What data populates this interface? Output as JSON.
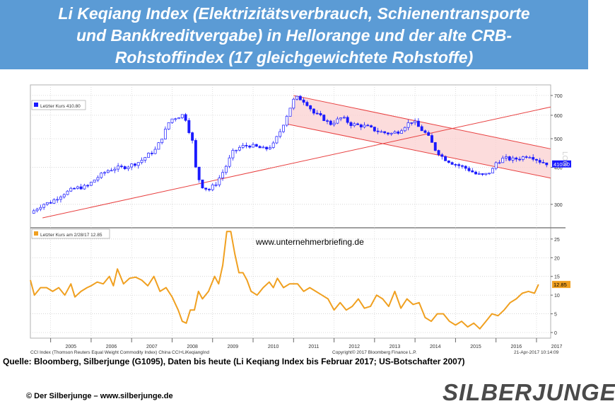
{
  "title": {
    "line1": "Li Keqiang Index (Elektrizitätsverbrauch, Schienentransporte",
    "line2": "und Bankkreditvergabe) in Hellorange und der alte CRB-",
    "line3": "Rohstoffindex (17 gleichgewichtete Rohstoffe)"
  },
  "watermark": "www.unternehmerbriefing.de",
  "source_note": "Quelle: Bloomberg, Silberjunge (G1095),  Daten  bis heute (Li Keqiang Index bis Februar 2017;  US-Botschafter  2007)",
  "copyright": "© Der Silberjunge – www.silberjunge.de",
  "brand": "SILBERJUNGE.",
  "footer": {
    "left": "CCI Index (Thomson Reuters Equal Weight Commodity Index) China CCI+LiKeqiangInd",
    "center": "Copyright© 2017 Bloomberg Finance L.P.",
    "right": "21-Apr-2017  10:14:09"
  },
  "colors": {
    "title_bg": "#5b9bd5",
    "candle_blue": "#1a1aff",
    "orange": "#f0a020",
    "trend_red": "#e84040",
    "channel_fill": "#fbd0d0"
  },
  "chart_data": [
    {
      "type": "candlestick",
      "legend": "Letzter Kurs 410.80",
      "last_value_tag": "410.80",
      "scale": "log",
      "y_ticks": [
        300,
        400,
        500,
        600,
        700
      ],
      "x_years": [
        "2005",
        "2006",
        "2007",
        "2008",
        "2009",
        "2010",
        "2011",
        "2012",
        "2013",
        "2014",
        "2015",
        "2016",
        "2017"
      ],
      "x_range": [
        2004.5,
        2017.35
      ],
      "y_range": [
        250,
        760
      ],
      "series_approx_close": [
        [
          2004.5,
          280
        ],
        [
          2004.8,
          300
        ],
        [
          2005.0,
          305
        ],
        [
          2005.3,
          325
        ],
        [
          2005.6,
          340
        ],
        [
          2005.9,
          345
        ],
        [
          2006.1,
          365
        ],
        [
          2006.4,
          390
        ],
        [
          2006.6,
          398
        ],
        [
          2006.8,
          400
        ],
        [
          2007.0,
          408
        ],
        [
          2007.2,
          418
        ],
        [
          2007.4,
          440
        ],
        [
          2007.6,
          460
        ],
        [
          2007.8,
          520
        ],
        [
          2007.95,
          580
        ],
        [
          2008.1,
          590
        ],
        [
          2008.3,
          605
        ],
        [
          2008.4,
          540
        ],
        [
          2008.5,
          490
        ],
        [
          2008.6,
          380
        ],
        [
          2008.75,
          345
        ],
        [
          2008.9,
          335
        ],
        [
          2009.1,
          355
        ],
        [
          2009.3,
          395
        ],
        [
          2009.5,
          450
        ],
        [
          2009.7,
          470
        ],
        [
          2009.9,
          475
        ],
        [
          2010.1,
          468
        ],
        [
          2010.3,
          460
        ],
        [
          2010.5,
          478
        ],
        [
          2010.7,
          540
        ],
        [
          2010.9,
          630
        ],
        [
          2011.0,
          675
        ],
        [
          2011.1,
          690
        ],
        [
          2011.3,
          665
        ],
        [
          2011.5,
          610
        ],
        [
          2011.7,
          590
        ],
        [
          2011.9,
          560
        ],
        [
          2012.0,
          570
        ],
        [
          2012.2,
          590
        ],
        [
          2012.4,
          560
        ],
        [
          2012.6,
          555
        ],
        [
          2012.8,
          550
        ],
        [
          2013.0,
          535
        ],
        [
          2013.2,
          525
        ],
        [
          2013.4,
          520
        ],
        [
          2013.6,
          530
        ],
        [
          2013.8,
          560
        ],
        [
          2013.95,
          575
        ],
        [
          2014.1,
          545
        ],
        [
          2014.3,
          515
        ],
        [
          2014.5,
          460
        ],
        [
          2014.7,
          430
        ],
        [
          2014.9,
          415
        ],
        [
          2015.1,
          405
        ],
        [
          2015.3,
          395
        ],
        [
          2015.5,
          380
        ],
        [
          2015.7,
          375
        ],
        [
          2015.9,
          390
        ],
        [
          2016.0,
          415
        ],
        [
          2016.2,
          430
        ],
        [
          2016.4,
          425
        ],
        [
          2016.6,
          430
        ],
        [
          2016.8,
          440
        ],
        [
          2016.95,
          430
        ],
        [
          2017.1,
          418
        ],
        [
          2017.3,
          410.8
        ]
      ],
      "trendline_start": [
        2004.8,
        270
      ],
      "trendline_end": [
        2017.35,
        640
      ],
      "channel_upper_start": [
        2011.0,
        700
      ],
      "channel_upper_end": [
        2017.35,
        462
      ],
      "channel_lower_start": [
        2010.85,
        560
      ],
      "channel_lower_end": [
        2017.35,
        368
      ]
    },
    {
      "type": "line",
      "legend": "Letzter Kurs am 2/28/17 12.85",
      "last_value_tag": "12.85",
      "y_ticks": [
        0,
        5,
        10,
        15,
        20,
        25
      ],
      "y_range": [
        -1.5,
        28
      ],
      "values": [
        [
          2004.5,
          14
        ],
        [
          2004.6,
          10
        ],
        [
          2004.75,
          12
        ],
        [
          2004.9,
          12
        ],
        [
          2005.05,
          11
        ],
        [
          2005.2,
          12
        ],
        [
          2005.35,
          10
        ],
        [
          2005.5,
          13
        ],
        [
          2005.6,
          9.5
        ],
        [
          2005.75,
          11
        ],
        [
          2005.9,
          12
        ],
        [
          2006.0,
          12.5
        ],
        [
          2006.15,
          13.5
        ],
        [
          2006.3,
          13
        ],
        [
          2006.45,
          15
        ],
        [
          2006.55,
          12.5
        ],
        [
          2006.65,
          17
        ],
        [
          2006.8,
          13
        ],
        [
          2006.95,
          14.5
        ],
        [
          2007.1,
          14.8
        ],
        [
          2007.25,
          14
        ],
        [
          2007.4,
          12.5
        ],
        [
          2007.55,
          15
        ],
        [
          2007.7,
          11
        ],
        [
          2007.85,
          12
        ],
        [
          2008.0,
          9.5
        ],
        [
          2008.15,
          6
        ],
        [
          2008.25,
          3
        ],
        [
          2008.35,
          2.5
        ],
        [
          2008.45,
          6
        ],
        [
          2008.55,
          6
        ],
        [
          2008.65,
          11
        ],
        [
          2008.75,
          9
        ],
        [
          2008.9,
          11
        ],
        [
          2009.05,
          15
        ],
        [
          2009.15,
          13
        ],
        [
          2009.25,
          18
        ],
        [
          2009.35,
          27
        ],
        [
          2009.45,
          27
        ],
        [
          2009.55,
          21
        ],
        [
          2009.65,
          16
        ],
        [
          2009.75,
          16
        ],
        [
          2009.85,
          14
        ],
        [
          2009.95,
          11
        ],
        [
          2010.1,
          10
        ],
        [
          2010.25,
          12
        ],
        [
          2010.4,
          13.5
        ],
        [
          2010.5,
          12
        ],
        [
          2010.6,
          14.5
        ],
        [
          2010.75,
          12
        ],
        [
          2010.9,
          13
        ],
        [
          2011.1,
          13
        ],
        [
          2011.25,
          11
        ],
        [
          2011.4,
          12
        ],
        [
          2011.55,
          11
        ],
        [
          2011.7,
          10
        ],
        [
          2011.85,
          9
        ],
        [
          2012.0,
          6
        ],
        [
          2012.15,
          8
        ],
        [
          2012.3,
          6
        ],
        [
          2012.45,
          7
        ],
        [
          2012.6,
          9
        ],
        [
          2012.75,
          6.5
        ],
        [
          2012.9,
          7
        ],
        [
          2013.05,
          10
        ],
        [
          2013.2,
          9
        ],
        [
          2013.35,
          7
        ],
        [
          2013.5,
          11
        ],
        [
          2013.65,
          6.5
        ],
        [
          2013.8,
          9
        ],
        [
          2013.95,
          7.5
        ],
        [
          2014.1,
          8
        ],
        [
          2014.25,
          4
        ],
        [
          2014.4,
          3
        ],
        [
          2014.55,
          5
        ],
        [
          2014.7,
          5
        ],
        [
          2014.85,
          3
        ],
        [
          2015.0,
          2
        ],
        [
          2015.15,
          3
        ],
        [
          2015.3,
          1.5
        ],
        [
          2015.45,
          2.5
        ],
        [
          2015.6,
          1
        ],
        [
          2015.75,
          3
        ],
        [
          2015.9,
          5
        ],
        [
          2016.05,
          4.5
        ],
        [
          2016.2,
          6
        ],
        [
          2016.35,
          8
        ],
        [
          2016.5,
          9
        ],
        [
          2016.65,
          10.5
        ],
        [
          2016.8,
          11
        ],
        [
          2016.95,
          10.5
        ],
        [
          2017.05,
          12.85
        ]
      ]
    }
  ]
}
